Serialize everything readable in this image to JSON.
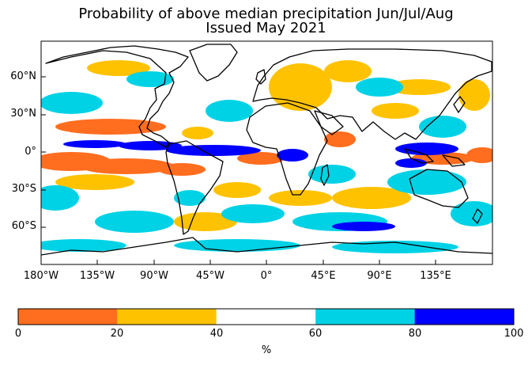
{
  "title": {
    "line1": "Probability of above median precipitation Jun/Jul/Aug",
    "line2": "Issued May 2021"
  },
  "map": {
    "lat_ticks": [
      "60°N",
      "30°N",
      "0°",
      "30°S",
      "60°S"
    ],
    "lon_ticks": [
      "180°W",
      "135°W",
      "90°W",
      "45°W",
      "0°",
      "45°E",
      "90°E",
      "135°E"
    ]
  },
  "colorbar": {
    "ticks": [
      "0",
      "20",
      "40",
      "60",
      "80",
      "100"
    ],
    "unit": "%",
    "bins": [
      {
        "range": "0-20",
        "color": "#ff6d1e"
      },
      {
        "range": "20-40",
        "color": "#ffc200"
      },
      {
        "range": "40-60",
        "color": "#ffffff"
      },
      {
        "range": "60-80",
        "color": "#00d2e6"
      },
      {
        "range": "80-100",
        "color": "#0000ff"
      }
    ]
  },
  "colors": {
    "dry_strong": "#ff6d1e",
    "dry": "#ffc200",
    "neutral": "#ffffff",
    "wet": "#00d2e6",
    "wet_strong": "#0000ff",
    "coastline": "#000000"
  }
}
